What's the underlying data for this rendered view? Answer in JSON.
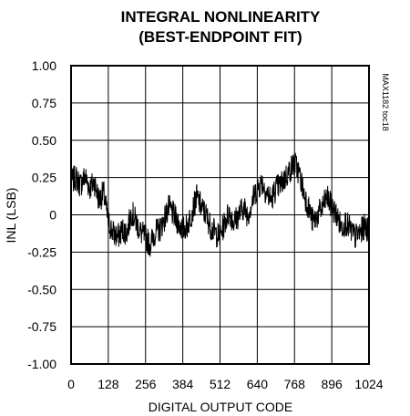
{
  "chart_data": {
    "type": "line",
    "title": "INTEGRAL NONLINEARITY",
    "subtitle": "(BEST-ENDPOINT FIT)",
    "xlabel": "DIGITAL OUTPUT CODE",
    "ylabel": "INL (LSB)",
    "side_note": "MAX1182 toc18",
    "xlim": [
      0,
      1024
    ],
    "ylim": [
      -1.0,
      1.0
    ],
    "x_ticks": [
      0,
      128,
      256,
      384,
      512,
      640,
      768,
      896,
      1024
    ],
    "x_tick_labels": [
      "0",
      "128",
      "256",
      "384",
      "512",
      "640",
      "768",
      "896",
      "1024"
    ],
    "y_ticks": [
      1.0,
      0.75,
      0.5,
      0.25,
      0,
      -0.25,
      -0.5,
      -0.75,
      -1.0
    ],
    "y_tick_labels": [
      "1.00",
      "0.75",
      "0.50",
      "0.25",
      "0",
      "-0.25",
      "-0.50",
      "-0.75",
      "-1.00"
    ],
    "grid": true,
    "line_color": "#000000",
    "series": [
      {
        "x": [
          0,
          16,
          32,
          48,
          64,
          80,
          96,
          112,
          128,
          144,
          160,
          176,
          192,
          208,
          224,
          240,
          256,
          272,
          288,
          304,
          320,
          336,
          352,
          368,
          384,
          400,
          416,
          432,
          448,
          464,
          480,
          496,
          512,
          528,
          544,
          560,
          576,
          592,
          608,
          624,
          640,
          656,
          672,
          688,
          704,
          720,
          736,
          752,
          768,
          784,
          800,
          816,
          832,
          848,
          864,
          880,
          896,
          912,
          928,
          944,
          960,
          976,
          992,
          1008,
          1024
        ],
        "y": [
          0.22,
          0.25,
          0.2,
          0.26,
          0.18,
          0.22,
          0.1,
          0.15,
          -0.05,
          -0.12,
          -0.15,
          -0.1,
          -0.12,
          0.02,
          -0.05,
          -0.12,
          -0.15,
          -0.2,
          -0.12,
          -0.1,
          -0.03,
          0.05,
          0.0,
          -0.05,
          -0.1,
          -0.07,
          0.02,
          0.12,
          0.05,
          0.0,
          -0.08,
          -0.12,
          -0.15,
          -0.05,
          0.02,
          -0.05,
          0.0,
          0.05,
          0.0,
          0.1,
          0.18,
          0.22,
          0.15,
          0.1,
          0.18,
          0.2,
          0.25,
          0.3,
          0.35,
          0.28,
          0.15,
          0.05,
          -0.05,
          0.0,
          0.05,
          0.12,
          0.05,
          0.0,
          -0.08,
          -0.05,
          -0.1,
          -0.15,
          -0.12,
          -0.08,
          -0.1
        ]
      }
    ]
  }
}
